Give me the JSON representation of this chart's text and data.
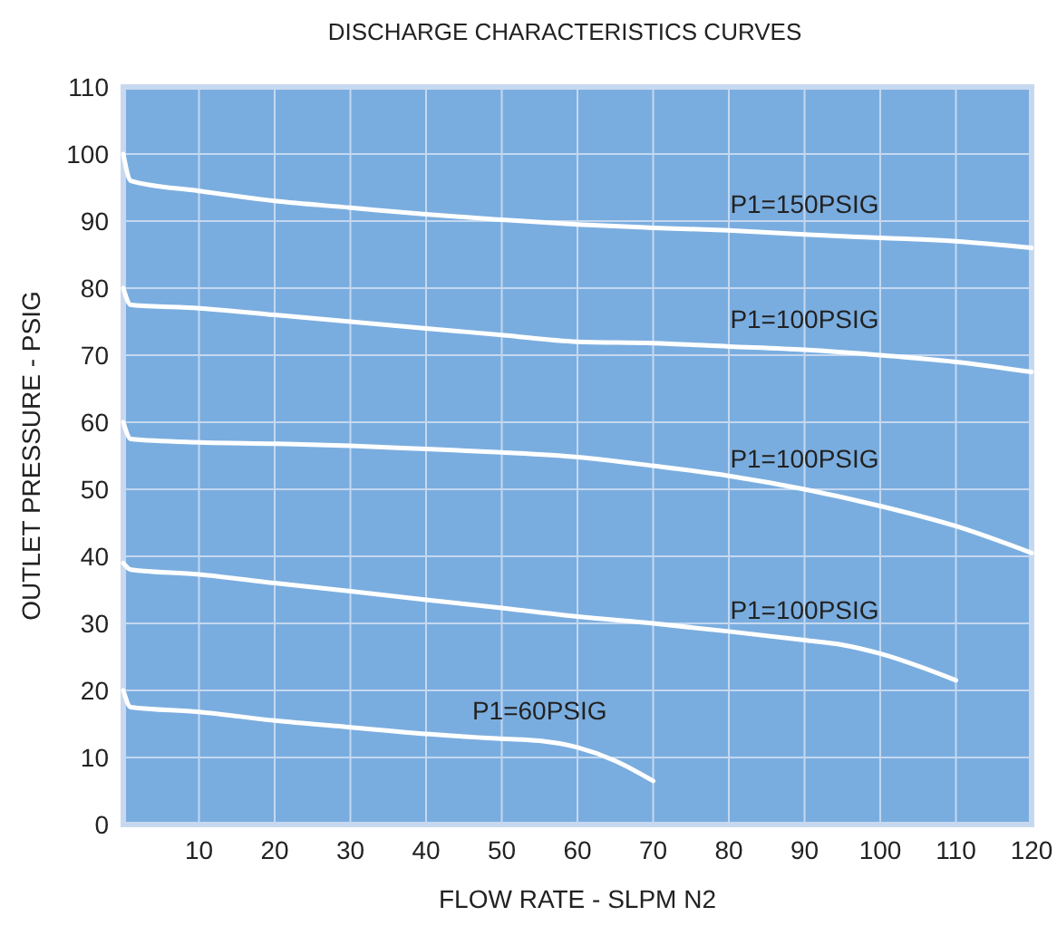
{
  "chart_data": {
    "type": "line",
    "title": "DISCHARGE CHARACTERISTICS CURVES",
    "xlabel": "FLOW RATE - SLPM N2",
    "ylabel": "OUTLET PRESSURE - PSIG",
    "xlim": [
      0,
      120
    ],
    "xticks": [
      10,
      20,
      30,
      40,
      50,
      60,
      70,
      80,
      90,
      100,
      110,
      120
    ],
    "ylim": [
      0,
      110
    ],
    "yticks": [
      0,
      10,
      20,
      30,
      40,
      50,
      60,
      70,
      80,
      90,
      100,
      110
    ],
    "grid": true,
    "marker": "none",
    "line_style": "solid",
    "series": [
      {
        "name": "P1=150PSIG",
        "color": "#ffffff",
        "x": [
          0,
          1,
          10,
          20,
          30,
          40,
          50,
          60,
          70,
          80,
          90,
          100,
          110,
          120
        ],
        "values": [
          100,
          96,
          94.5,
          93,
          92,
          91,
          90.2,
          89.5,
          89,
          88.6,
          88,
          87.5,
          87,
          86
        ]
      },
      {
        "name": "P1=100PSIG",
        "color": "#ffffff",
        "x": [
          0,
          1,
          10,
          20,
          30,
          40,
          50,
          60,
          70,
          80,
          90,
          100,
          110,
          120
        ],
        "values": [
          80,
          77.5,
          77,
          76,
          75,
          74,
          73,
          72,
          71.8,
          71.3,
          70.8,
          70,
          69,
          67.5
        ]
      },
      {
        "name": "P1=100PSIG",
        "color": "#ffffff",
        "x": [
          0,
          1,
          10,
          20,
          30,
          40,
          50,
          60,
          70,
          80,
          90,
          100,
          110,
          120
        ],
        "values": [
          60,
          57.5,
          57,
          56.8,
          56.5,
          56,
          55.5,
          54.8,
          53.5,
          52,
          50,
          47.5,
          44.5,
          40.5
        ]
      },
      {
        "name": "P1=100PSIG",
        "color": "#ffffff",
        "x": [
          0,
          1,
          10,
          20,
          30,
          40,
          50,
          60,
          70,
          80,
          90,
          95,
          100,
          110
        ],
        "values": [
          39,
          38,
          37.3,
          36,
          34.8,
          33.5,
          32.3,
          31,
          30,
          28.8,
          27.5,
          26.8,
          25.5,
          21.5
        ]
      },
      {
        "name": "P1=60PSIG",
        "color": "#ffffff",
        "x": [
          0,
          1,
          10,
          20,
          30,
          40,
          50,
          55,
          60,
          65,
          70
        ],
        "values": [
          20,
          17.5,
          16.8,
          15.5,
          14.5,
          13.5,
          12.8,
          12.5,
          11.5,
          9.5,
          6.5
        ]
      }
    ]
  }
}
